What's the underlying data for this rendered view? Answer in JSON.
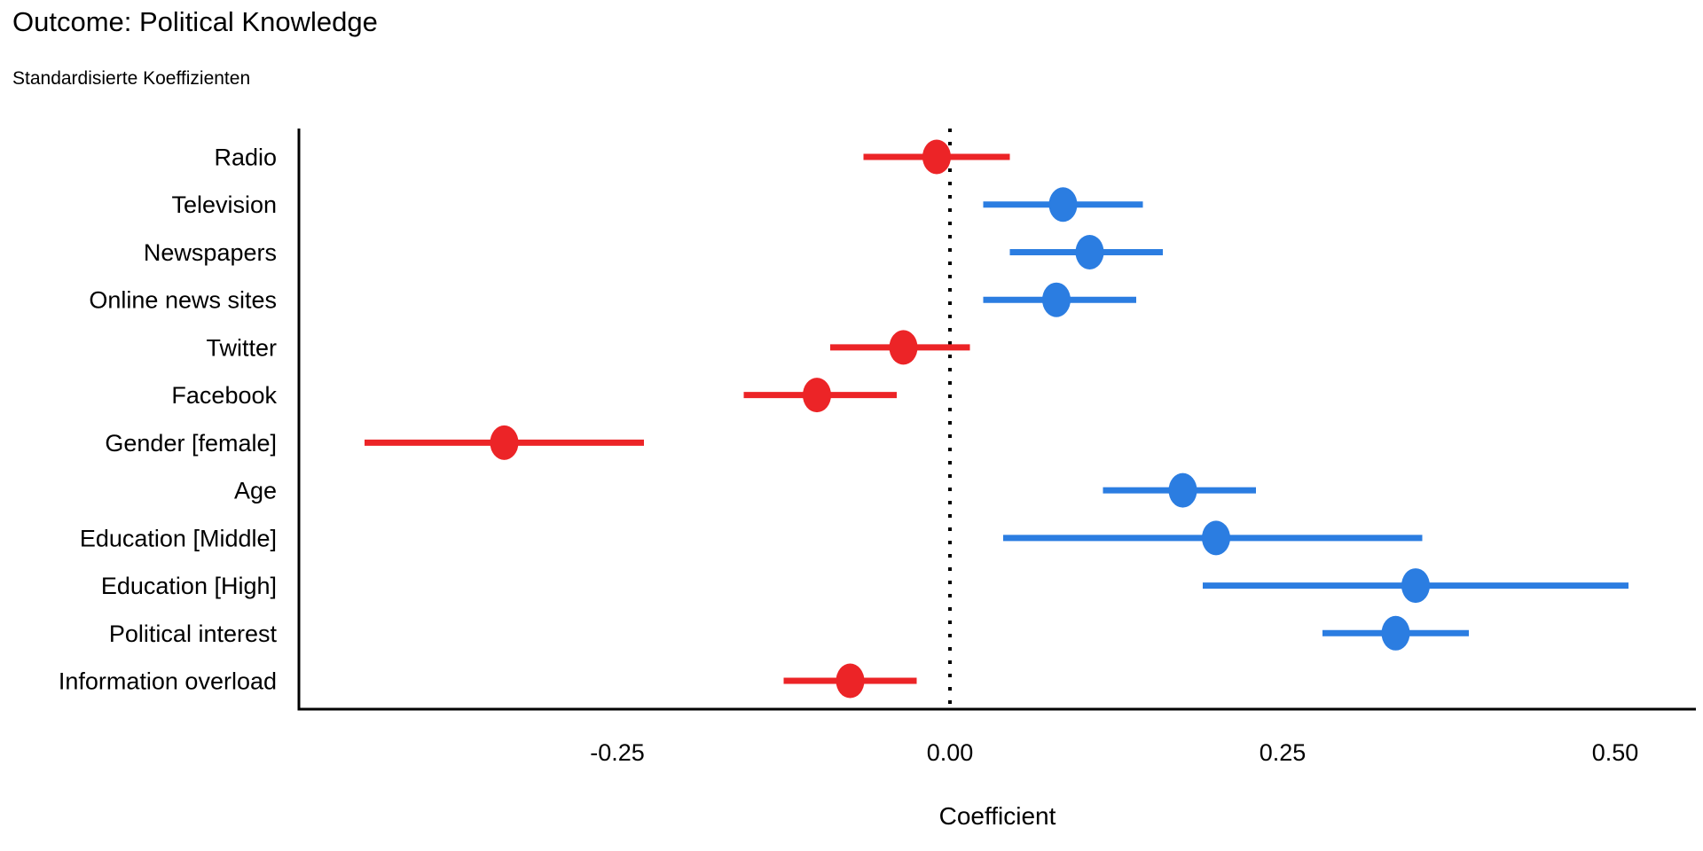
{
  "header": {
    "title": "Outcome: Political Knowledge",
    "subtitle": "Standardisierte Koeffizienten"
  },
  "chart_data": {
    "type": "scatter",
    "variant": "coefficient-forest-plot",
    "title": "Outcome: Political Knowledge",
    "subtitle": "Standardisierte Koeffizienten",
    "xlabel": "Coefficient",
    "ylabel": "",
    "orientation": "horizontal",
    "grid": false,
    "legend": false,
    "xlim": [
      -0.49,
      0.56
    ],
    "x_ticks": [
      -0.25,
      0,
      0.25,
      0.5
    ],
    "x_tick_labels": [
      "-0.25",
      "0.00",
      "0.25",
      "0.50"
    ],
    "reference_line_x": 0,
    "colors": {
      "positive": "#2b7de1",
      "negative": "#ec2427",
      "axis": "#000000",
      "reference_line": "#000000"
    },
    "categories": [
      "Radio",
      "Television",
      "Newspapers",
      "Online news sites",
      "Twitter",
      "Facebook",
      "Gender [female]",
      "Age",
      "Education [Middle]",
      "Education [High]",
      "Political interest",
      "Information overload"
    ],
    "points": [
      {
        "label": "Radio",
        "estimate": -0.01,
        "ci_low": -0.065,
        "ci_high": 0.045,
        "direction": "negative"
      },
      {
        "label": "Television",
        "estimate": 0.085,
        "ci_low": 0.025,
        "ci_high": 0.145,
        "direction": "positive"
      },
      {
        "label": "Newspapers",
        "estimate": 0.105,
        "ci_low": 0.045,
        "ci_high": 0.16,
        "direction": "positive"
      },
      {
        "label": "Online news sites",
        "estimate": 0.08,
        "ci_low": 0.025,
        "ci_high": 0.14,
        "direction": "positive"
      },
      {
        "label": "Twitter",
        "estimate": -0.035,
        "ci_low": -0.09,
        "ci_high": 0.015,
        "direction": "negative"
      },
      {
        "label": "Facebook",
        "estimate": -0.1,
        "ci_low": -0.155,
        "ci_high": -0.04,
        "direction": "negative"
      },
      {
        "label": "Gender [female]",
        "estimate": -0.335,
        "ci_low": -0.44,
        "ci_high": -0.23,
        "direction": "negative"
      },
      {
        "label": "Age",
        "estimate": 0.175,
        "ci_low": 0.115,
        "ci_high": 0.23,
        "direction": "positive"
      },
      {
        "label": "Education [Middle]",
        "estimate": 0.2,
        "ci_low": 0.04,
        "ci_high": 0.355,
        "direction": "positive"
      },
      {
        "label": "Education [High]",
        "estimate": 0.35,
        "ci_low": 0.19,
        "ci_high": 0.51,
        "direction": "positive"
      },
      {
        "label": "Political interest",
        "estimate": 0.335,
        "ci_low": 0.28,
        "ci_high": 0.39,
        "direction": "positive"
      },
      {
        "label": "Information overload",
        "estimate": -0.075,
        "ci_low": -0.125,
        "ci_high": -0.025,
        "direction": "negative"
      }
    ]
  }
}
